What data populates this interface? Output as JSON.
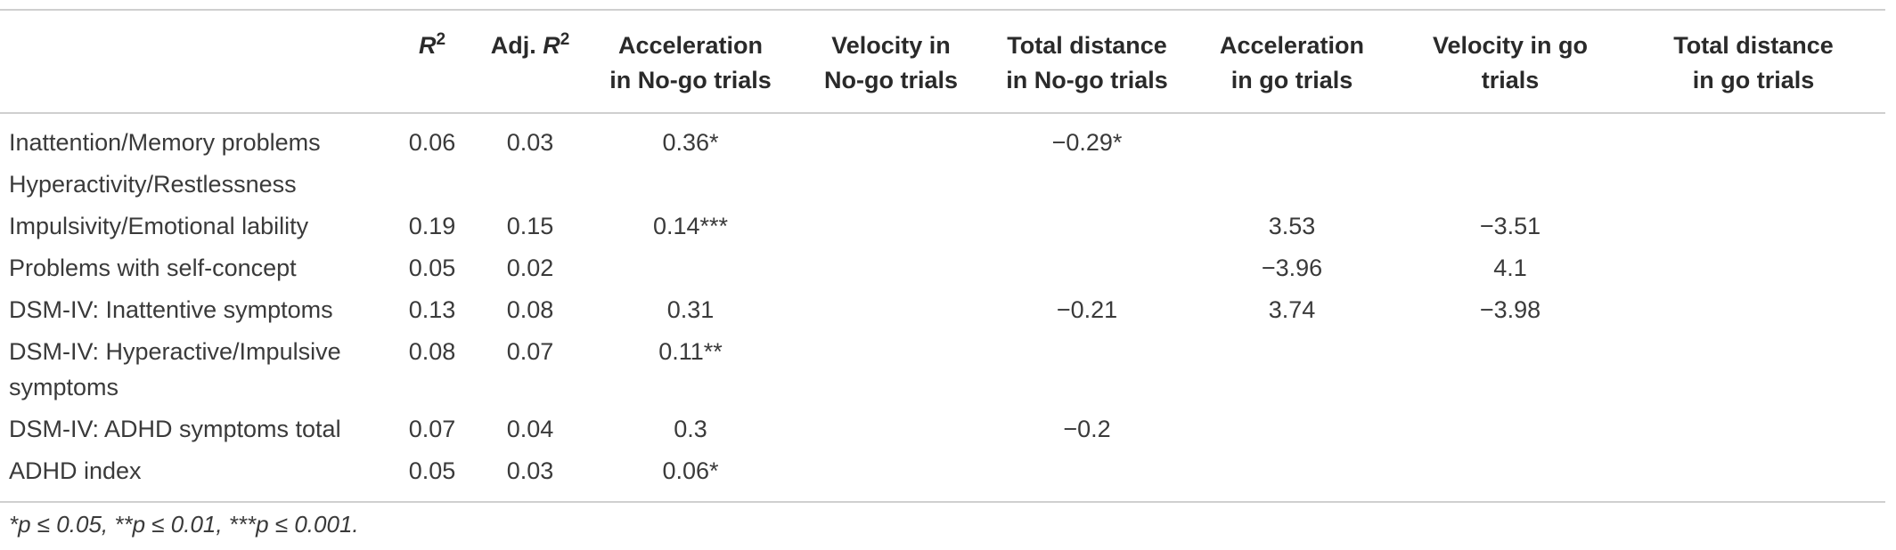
{
  "columns": {
    "label": "",
    "r2": "R",
    "r2_sup": "2",
    "adj_prefix": "Adj. ",
    "adj_r": "R",
    "adj_sup": "2",
    "acc_nogo_1": "Acceleration",
    "acc_nogo_2": "in No-go trials",
    "vel_nogo_1": "Velocity in",
    "vel_nogo_2": "No-go trials",
    "dist_nogo_1": "Total distance",
    "dist_nogo_2": "in No-go trials",
    "acc_go_1": "Acceleration",
    "acc_go_2": "in go trials",
    "vel_go_1": "Velocity in go",
    "vel_go_2": "trials",
    "dist_go_1": "Total distance",
    "dist_go_2": "in go trials"
  },
  "rows": [
    {
      "label": "Inattention/Memory problems",
      "r2": "0.06",
      "adj": "0.03",
      "acc_nogo": "0.36*",
      "vel_nogo": "",
      "dist_nogo": "−0.29*",
      "acc_go": "",
      "vel_go": "",
      "dist_go": ""
    },
    {
      "label": "Hyperactivity/Restlessness",
      "r2": "",
      "adj": "",
      "acc_nogo": "",
      "vel_nogo": "",
      "dist_nogo": "",
      "acc_go": "",
      "vel_go": "",
      "dist_go": ""
    },
    {
      "label": "Impulsivity/Emotional lability",
      "r2": "0.19",
      "adj": "0.15",
      "acc_nogo": "0.14***",
      "vel_nogo": "",
      "dist_nogo": "",
      "acc_go": "3.53",
      "vel_go": "−3.51",
      "dist_go": ""
    },
    {
      "label": "Problems with self-concept",
      "r2": "0.05",
      "adj": "0.02",
      "acc_nogo": "",
      "vel_nogo": "",
      "dist_nogo": "",
      "acc_go": "−3.96",
      "vel_go": "4.1",
      "dist_go": ""
    },
    {
      "label": "DSM-IV: Inattentive symptoms",
      "r2": "0.13",
      "adj": "0.08",
      "acc_nogo": "0.31",
      "vel_nogo": "",
      "dist_nogo": "−0.21",
      "acc_go": "3.74",
      "vel_go": "−3.98",
      "dist_go": ""
    },
    {
      "label_1": "DSM-IV: Hyperactive/Impulsive",
      "label_2": "symptoms",
      "r2": "0.08",
      "adj": "0.07",
      "acc_nogo": "0.11**",
      "vel_nogo": "",
      "dist_nogo": "",
      "acc_go": "",
      "vel_go": "",
      "dist_go": ""
    },
    {
      "label": "DSM-IV: ADHD symptoms total",
      "r2": "0.07",
      "adj": "0.04",
      "acc_nogo": "0.3",
      "vel_nogo": "",
      "dist_nogo": "−0.2",
      "acc_go": "",
      "vel_go": "",
      "dist_go": ""
    },
    {
      "label": "ADHD index",
      "r2": "0.05",
      "adj": "0.03",
      "acc_nogo": "0.06*",
      "vel_nogo": "",
      "dist_nogo": "",
      "acc_go": "",
      "vel_go": "",
      "dist_go": ""
    }
  ],
  "footnote": "*p ≤ 0.05, **p ≤ 0.01, ***p ≤ 0.001."
}
